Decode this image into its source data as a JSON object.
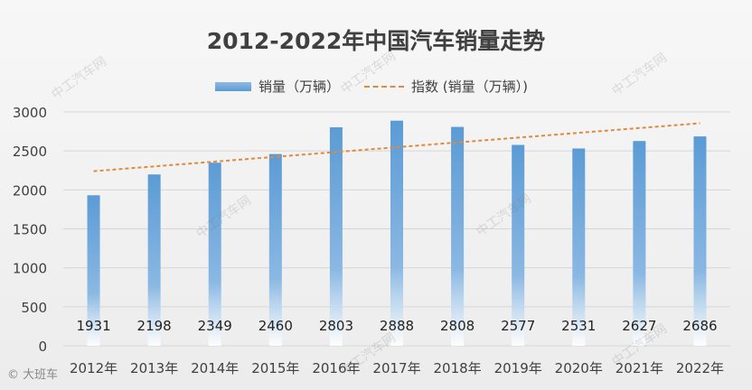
{
  "chart_data": {
    "type": "bar",
    "title": "2012-2022年中国汽车销量走势",
    "categories": [
      "2012年",
      "2013年",
      "2014年",
      "2015年",
      "2016年",
      "2017年",
      "2018年",
      "2019年",
      "2020年",
      "2021年",
      "2022年"
    ],
    "series": [
      {
        "name": "销量（万辆）",
        "type": "bar",
        "values": [
          1931,
          2198,
          2349,
          2460,
          2803,
          2888,
          2808,
          2577,
          2531,
          2627,
          2686
        ]
      },
      {
        "name": "指数 (销量（万辆）)",
        "type": "trendline",
        "start": 2240,
        "end": 2855
      }
    ],
    "ylim": [
      0,
      3000
    ],
    "yticks": [
      0,
      500,
      1000,
      1500,
      2000,
      2500,
      3000
    ],
    "gridlines": true,
    "legend_position": "top",
    "colors": {
      "bar": "#5b9bd5",
      "trend": "#e08a3c",
      "grid": "#d6d6d6",
      "text": "#404040"
    }
  },
  "watermarks": [
    "中工汽车网",
    "中工汽车网",
    "中工汽车网",
    "中工汽车网",
    "中工汽车网",
    "中工汽车网",
    "中工汽车网"
  ],
  "corner_logo": "大班车",
  "corner_logo_prefix": "©"
}
